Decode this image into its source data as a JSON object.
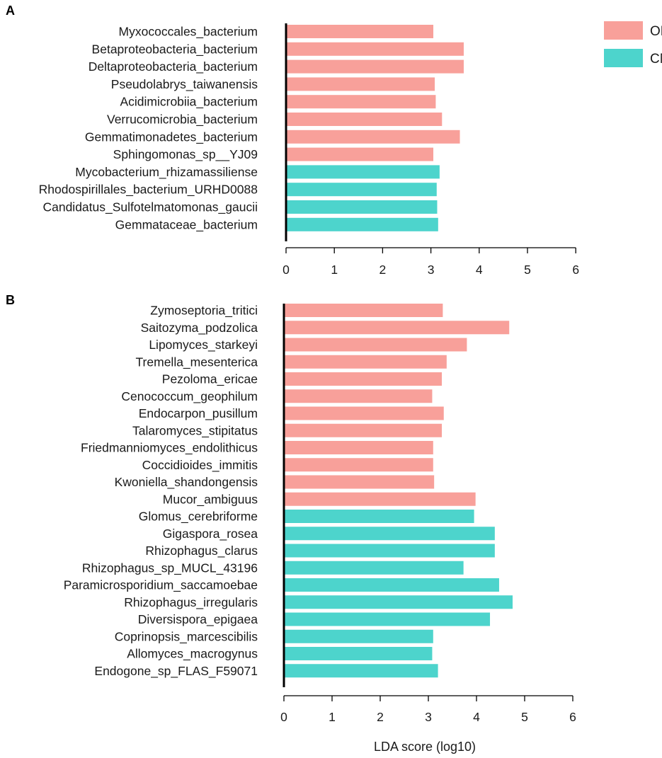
{
  "colors": {
    "OM": "#F8A09A",
    "CM": "#4DD4CC"
  },
  "legend": [
    {
      "name": "OM",
      "color": "#F8A09A"
    },
    {
      "name": "CM",
      "color": "#4DD4CC"
    }
  ],
  "xlabel": "LDA score (log10)",
  "chart_data": [
    {
      "type": "bar",
      "panel": "A",
      "orientation": "horizontal",
      "xlim": [
        0,
        6
      ],
      "ticks": [
        0,
        1,
        2,
        3,
        4,
        5,
        6
      ],
      "categories": [
        "Myxococcales_bacterium",
        "Betaproteobacteria_bacterium",
        "Deltaproteobacteria_bacterium",
        "Pseudolabrys_taiwanensis",
        "Acidimicrobiia_bacterium",
        "Verrucomicrobia_bacterium",
        "Gemmatimonadetes_bacterium",
        "Sphingomonas_sp__YJ09",
        "Mycobacterium_rhizamassiliense",
        "Rhodospirillales_bacterium_URHD0088",
        "Candidatus_Sulfotelmatomonas_gaucii",
        "Gemmataceae_bacterium"
      ],
      "values": [
        3.05,
        3.68,
        3.68,
        3.08,
        3.1,
        3.23,
        3.6,
        3.05,
        3.18,
        3.12,
        3.13,
        3.15
      ],
      "groups": [
        "OM",
        "OM",
        "OM",
        "OM",
        "OM",
        "OM",
        "OM",
        "OM",
        "CM",
        "CM",
        "CM",
        "CM"
      ]
    },
    {
      "type": "bar",
      "panel": "B",
      "orientation": "horizontal",
      "xlim": [
        0,
        6
      ],
      "ticks": [
        0,
        1,
        2,
        3,
        4,
        5,
        6
      ],
      "xlabel": "LDA score (log10)",
      "categories": [
        "Zymoseptoria_tritici",
        "Saitozyma_podzolica",
        "Lipomyces_starkeyi",
        "Tremella_mesenterica",
        "Pezoloma_ericae",
        "Cenococcum_geophilum",
        "Endocarpon_pusillum",
        "Talaromyces_stipitatus",
        "Friedmanniomyces_endolithicus",
        "Coccidioides_immitis",
        "Kwoniella_shandongensis",
        "Mucor_ambiguus",
        "Glomus_cerebriforme",
        "Gigaspora_rosea",
        "Rhizophagus_clarus",
        "Rhizophagus_sp_MUCL_43196",
        "Paramicrosporidium_saccamoebae",
        "Rhizophagus_irregularis",
        "Diversispora_epigaea",
        "Coprinopsis_marcescibilis",
        "Allomyces_macrogynus",
        "Endogone_sp_FLAS_F59071"
      ],
      "values": [
        3.3,
        4.68,
        3.8,
        3.38,
        3.28,
        3.08,
        3.32,
        3.28,
        3.1,
        3.1,
        3.12,
        3.98,
        3.95,
        4.38,
        4.38,
        3.73,
        4.47,
        4.75,
        4.28,
        3.1,
        3.08,
        3.2
      ],
      "groups": [
        "OM",
        "OM",
        "OM",
        "OM",
        "OM",
        "OM",
        "OM",
        "OM",
        "OM",
        "OM",
        "OM",
        "OM",
        "CM",
        "CM",
        "CM",
        "CM",
        "CM",
        "CM",
        "CM",
        "CM",
        "CM",
        "CM"
      ]
    }
  ]
}
